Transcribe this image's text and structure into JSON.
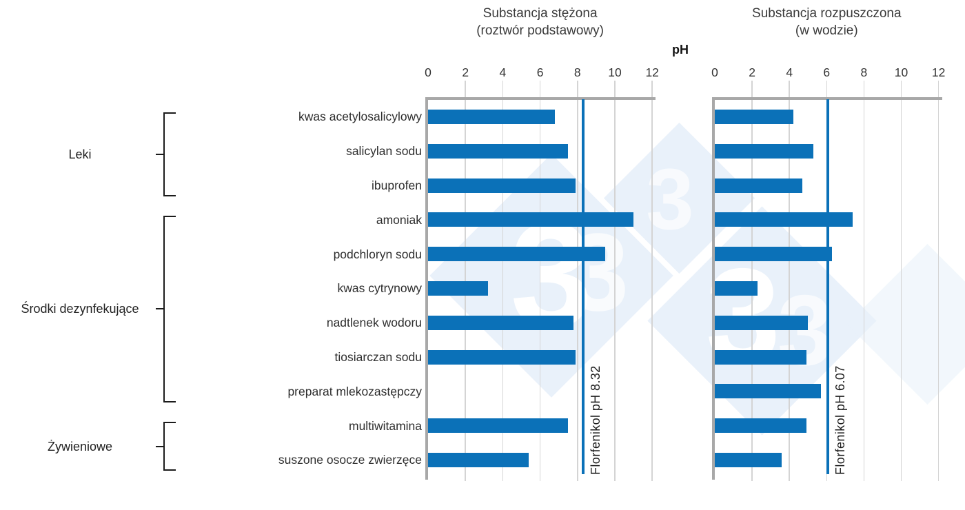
{
  "chart_data": {
    "type": "bar",
    "orientation": "horizontal",
    "axis_label": "pH",
    "xlim": [
      0,
      12
    ],
    "x_ticks": [
      0,
      2,
      4,
      6,
      8,
      10,
      12
    ],
    "grid": true,
    "categories": [
      "kwas acetylosalicylowy",
      "salicylan sodu",
      "ibuprofen",
      "amoniak",
      "podchloryn sodu",
      "kwas cytrynowy",
      "nadtlenek wodoru",
      "tiosiarczan sodu",
      "preparat mlekozastępczy",
      "multiwitamina",
      "suszone osocze zwierzęce"
    ],
    "groups": [
      {
        "label": "Leki",
        "first": 0,
        "last": 2
      },
      {
        "label": "Środki dezynfekujące",
        "first": 3,
        "last": 8
      },
      {
        "label": "Żywieniowe",
        "first": 9,
        "last": 10
      }
    ],
    "panels": [
      {
        "title": [
          "Substancja stężona",
          "(roztwór podstawowy)"
        ],
        "values": [
          6.8,
          7.5,
          7.9,
          11.0,
          9.5,
          3.2,
          7.8,
          7.9,
          null,
          7.5,
          5.4
        ],
        "ref_line": {
          "label": "Florfenikol pH 8.32",
          "value": 8.32
        }
      },
      {
        "title": [
          "Substancja rozpuszczona",
          "(w wodzie)"
        ],
        "values": [
          4.2,
          5.3,
          4.7,
          7.4,
          6.3,
          2.3,
          5.0,
          4.9,
          5.7,
          4.9,
          3.6
        ],
        "ref_line": {
          "label": "Florfenikol pH 6.07",
          "value": 6.07
        }
      }
    ],
    "colors": {
      "bar": "#0b71b8",
      "ref_line": "#0b71b8",
      "gridline": "#d4d4d4",
      "axis": "#a8a8a8",
      "text": "#2e2e2e",
      "watermark": "#e9f1fa"
    },
    "legend_position": "none"
  },
  "watermark": {
    "digit": "3"
  }
}
